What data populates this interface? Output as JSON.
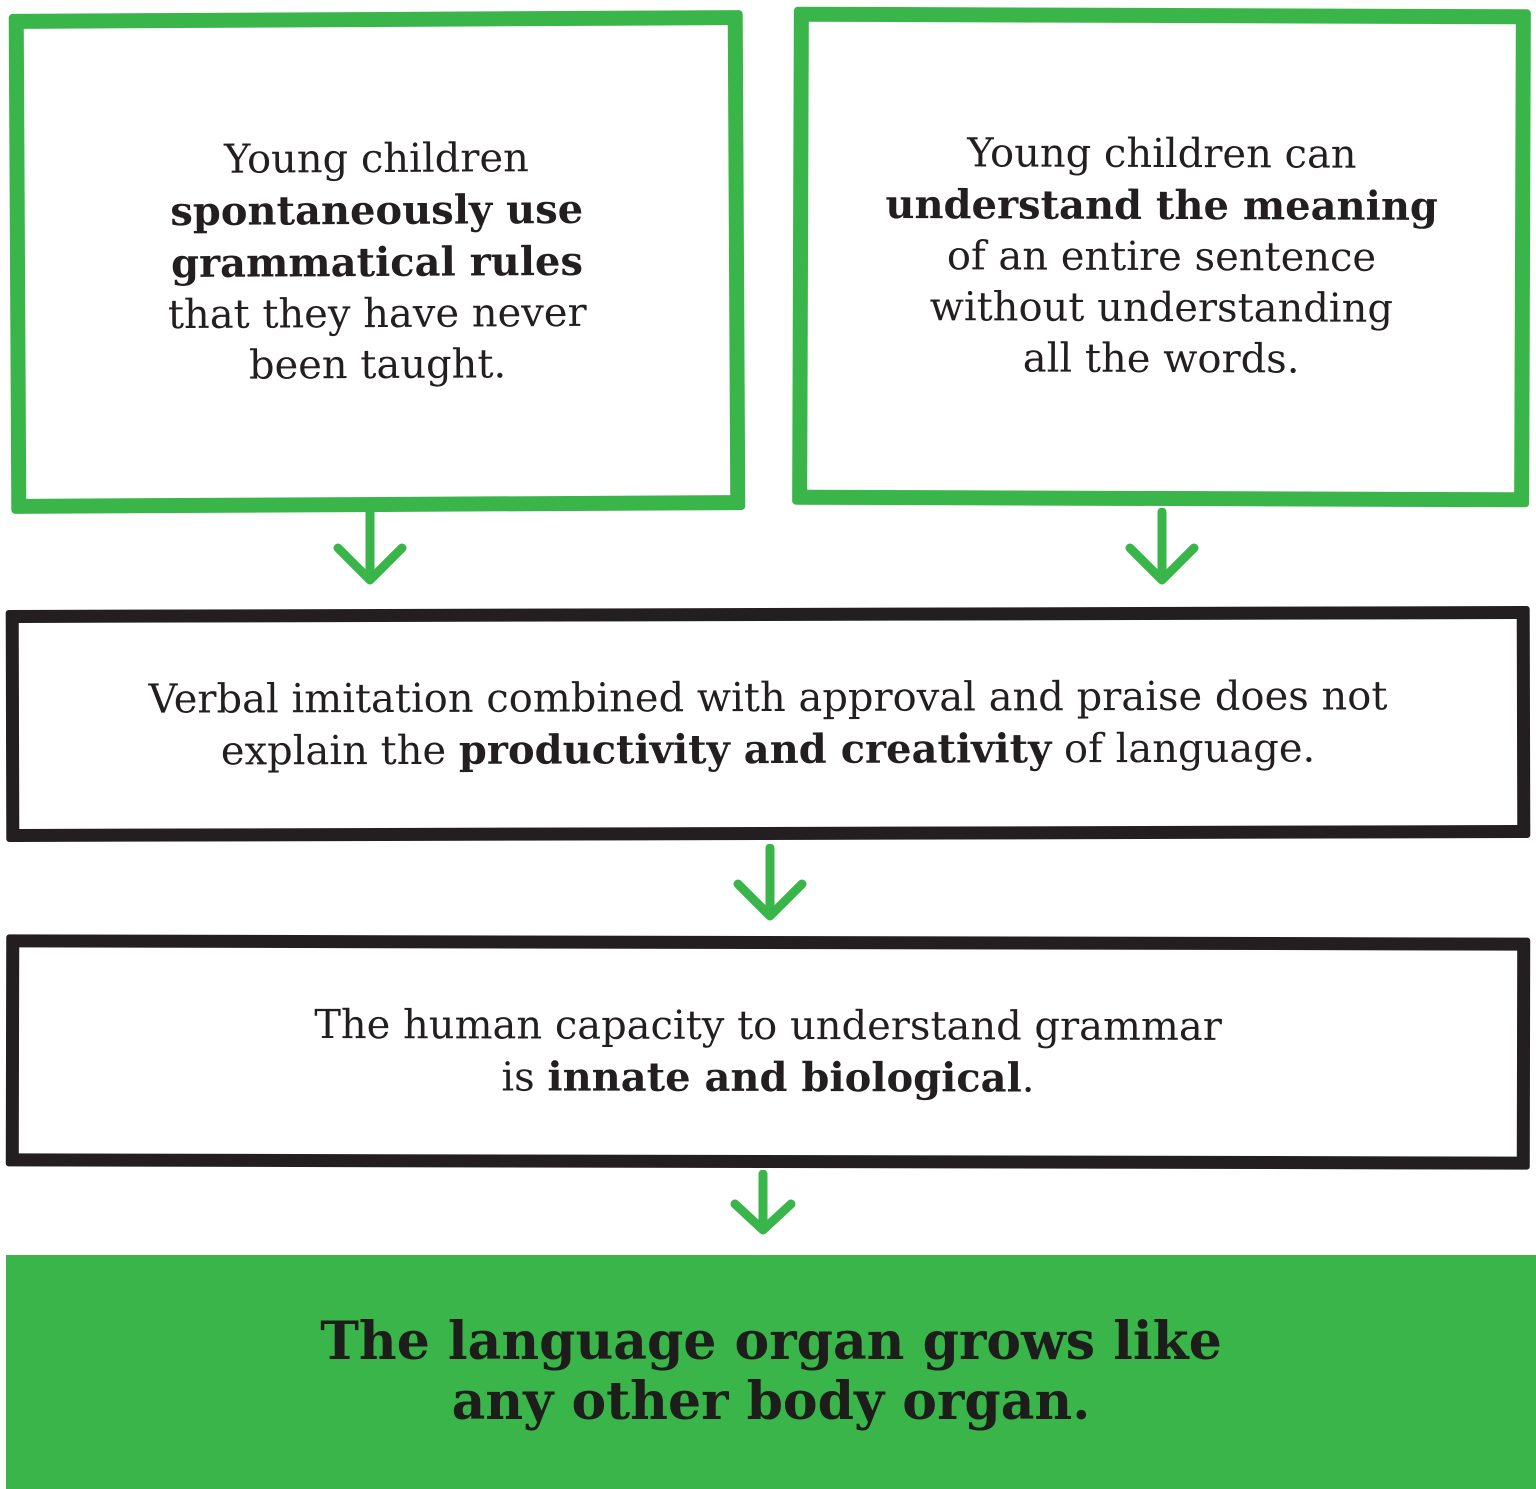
{
  "boxes": {
    "a": {
      "line1": "Young children",
      "bold1": "spontaneously use",
      "bold2": "grammatical rules",
      "line2": "that they have never",
      "line3": "been taught."
    },
    "b": {
      "line1": "Young children can",
      "bold1": "understand the meaning",
      "line2": "of an entire sentence",
      "line3": "without understanding",
      "line4": "all the words."
    },
    "c": {
      "line1": "Verbal imitation combined with approval and praise does not",
      "pre": "explain the",
      "bold": "productivity and creativity",
      "post": "of language."
    },
    "d": {
      "line1": "The human capacity to understand grammar",
      "pre": "is",
      "bold": "innate and biological",
      "post": "."
    },
    "e": {
      "line1": "The language organ grows like",
      "line2": "any other body organ."
    }
  },
  "colors": {
    "green": "#3ab54a",
    "black": "#231f20"
  }
}
